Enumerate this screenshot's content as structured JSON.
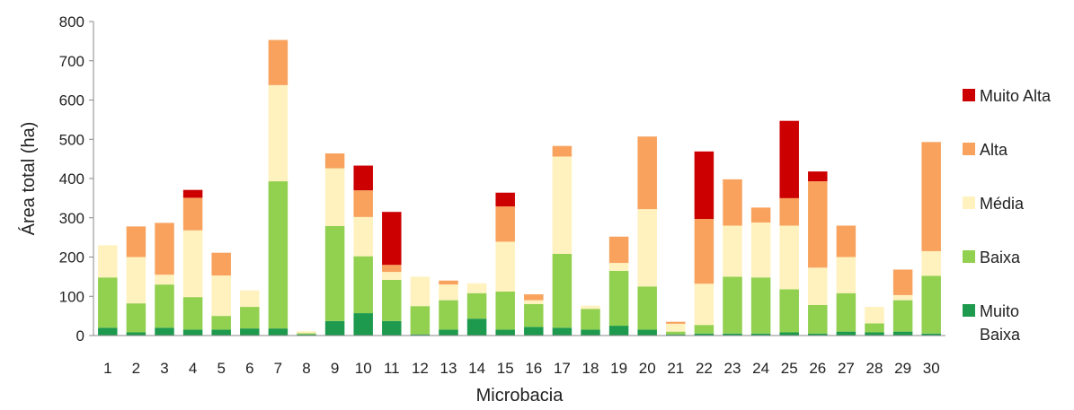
{
  "chart_data": {
    "type": "bar",
    "stacked": true,
    "title": "",
    "xlabel": "Microbacia",
    "ylabel": "Área total (ha)",
    "ylim": [
      0,
      800
    ],
    "yticks": [
      0,
      100,
      200,
      300,
      400,
      500,
      600,
      700,
      800
    ],
    "grid": false,
    "legend_position": "right",
    "categories": [
      "1",
      "2",
      "3",
      "4",
      "5",
      "6",
      "7",
      "8",
      "9",
      "10",
      "11",
      "12",
      "13",
      "14",
      "15",
      "16",
      "17",
      "18",
      "19",
      "20",
      "21",
      "22",
      "23",
      "24",
      "25",
      "26",
      "27",
      "28",
      "29",
      "30"
    ],
    "series": [
      {
        "name": "Muito Baixa",
        "color": "#1e9a4e",
        "values": [
          20,
          8,
          20,
          15,
          15,
          18,
          18,
          3,
          37,
          57,
          37,
          3,
          15,
          43,
          15,
          22,
          20,
          15,
          25,
          15,
          3,
          5,
          5,
          5,
          8,
          5,
          10,
          8,
          10,
          5
        ]
      },
      {
        "name": "Baixa",
        "color": "#92d050",
        "values": [
          128,
          74,
          110,
          83,
          35,
          55,
          375,
          3,
          242,
          145,
          105,
          72,
          75,
          65,
          97,
          58,
          188,
          53,
          140,
          110,
          7,
          22,
          145,
          143,
          110,
          73,
          98,
          23,
          80,
          147
        ]
      },
      {
        "name": "Média",
        "color": "#fff2be",
        "values": [
          82,
          118,
          25,
          170,
          103,
          42,
          245,
          5,
          147,
          100,
          20,
          75,
          40,
          25,
          127,
          10,
          248,
          8,
          20,
          197,
          20,
          105,
          130,
          140,
          162,
          95,
          92,
          42,
          13,
          63
        ]
      },
      {
        "name": "Alta",
        "color": "#f8a25e",
        "values": [
          0,
          78,
          132,
          83,
          58,
          0,
          115,
          0,
          38,
          68,
          18,
          0,
          10,
          0,
          90,
          15,
          27,
          0,
          67,
          185,
          5,
          165,
          118,
          38,
          70,
          220,
          80,
          0,
          65,
          278
        ]
      },
      {
        "name": "Muito Alta",
        "color": "#cc0000",
        "values": [
          0,
          0,
          0,
          20,
          0,
          0,
          0,
          0,
          0,
          63,
          135,
          0,
          0,
          0,
          35,
          0,
          0,
          0,
          0,
          0,
          0,
          172,
          0,
          0,
          197,
          25,
          0,
          0,
          0,
          0
        ]
      }
    ]
  }
}
